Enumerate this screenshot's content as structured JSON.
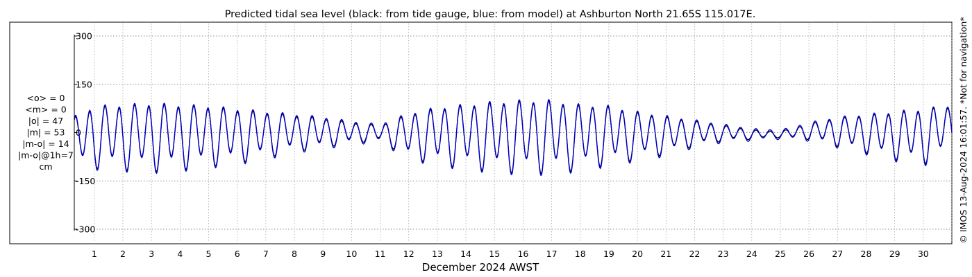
{
  "chart_data": {
    "type": "line",
    "title": "Predicted tidal sea level (black: from tide gauge, blue: from model) at Ashburton North 21.65S 115.017E.",
    "xlabel": "December 2024 AWST",
    "ylabel": "",
    "ylim": [
      -300,
      300
    ],
    "yticks": [
      300,
      150,
      0,
      -150,
      -300
    ],
    "yticks_labels": [
      "300",
      "150",
      "0",
      "-150",
      "-300"
    ],
    "xlim": [
      0.3,
      31.0
    ],
    "xticks": [
      1,
      2,
      3,
      4,
      5,
      6,
      7,
      8,
      9,
      10,
      11,
      12,
      13,
      14,
      15,
      16,
      17,
      18,
      19,
      20,
      21,
      22,
      23,
      24,
      25,
      26,
      27,
      28,
      29,
      30
    ],
    "xticks_labels": [
      "1",
      "2",
      "3",
      "4",
      "5",
      "6",
      "7",
      "8",
      "9",
      "10",
      "11",
      "12",
      "13",
      "14",
      "15",
      "16",
      "17",
      "18",
      "19",
      "20",
      "21",
      "22",
      "23",
      "24",
      "25",
      "26",
      "27",
      "28",
      "29",
      "30"
    ],
    "grid": true,
    "stats_lines": [
      "<o> = 0",
      "<m> = 0",
      "|o| = 47",
      "|m| = 53",
      "|m-o| = 14",
      "|m-o|@1h=7",
      "cm"
    ],
    "credit": "© IMOS 13-Aug-2024 16:01:57. *Not for navigation*",
    "series": [
      {
        "color": "#000000",
        "model": "semidiurnal tide reconstructed from peaks: daily [day, high, low]",
        "daily_extremes": [
          [
            0.3,
            55,
            -95
          ],
          [
            1,
            90,
            -105
          ],
          [
            2,
            95,
            -110
          ],
          [
            3,
            100,
            -115
          ],
          [
            4,
            95,
            -110
          ],
          [
            5,
            90,
            -100
          ],
          [
            6,
            80,
            -90
          ],
          [
            7,
            70,
            -75
          ],
          [
            8,
            60,
            -55
          ],
          [
            9,
            50,
            -45
          ],
          [
            10,
            35,
            -30
          ],
          [
            11,
            25,
            -25
          ],
          [
            12,
            65,
            -75
          ],
          [
            13,
            85,
            -95
          ],
          [
            14,
            95,
            -105
          ],
          [
            15,
            105,
            -115
          ],
          [
            16,
            110,
            -120
          ],
          [
            17,
            110,
            -120
          ],
          [
            18,
            95,
            -110
          ],
          [
            19,
            90,
            -95
          ],
          [
            20,
            70,
            -80
          ],
          [
            21,
            55,
            -65
          ],
          [
            22,
            40,
            -40
          ],
          [
            23,
            25,
            -25
          ],
          [
            24,
            10,
            -20
          ],
          [
            25,
            5,
            -15
          ],
          [
            26,
            30,
            -20
          ],
          [
            27,
            50,
            -40
          ],
          [
            28,
            60,
            -60
          ],
          [
            29,
            70,
            -80
          ],
          [
            30,
            80,
            -95
          ],
          [
            31,
            90,
            -50
          ]
        ]
      },
      {
        "color": "#0000cc",
        "model": "semidiurnal tide reconstructed from peaks: daily [day, high, low]",
        "daily_extremes": [
          [
            0.3,
            60,
            -100
          ],
          [
            1,
            95,
            -110
          ],
          [
            2,
            100,
            -115
          ],
          [
            3,
            105,
            -120
          ],
          [
            4,
            100,
            -115
          ],
          [
            5,
            95,
            -105
          ],
          [
            6,
            85,
            -95
          ],
          [
            7,
            75,
            -80
          ],
          [
            8,
            65,
            -60
          ],
          [
            9,
            55,
            -50
          ],
          [
            10,
            40,
            -35
          ],
          [
            11,
            30,
            -30
          ],
          [
            12,
            70,
            -80
          ],
          [
            13,
            90,
            -100
          ],
          [
            14,
            100,
            -110
          ],
          [
            15,
            110,
            -120
          ],
          [
            16,
            115,
            -125
          ],
          [
            17,
            115,
            -125
          ],
          [
            18,
            100,
            -115
          ],
          [
            19,
            95,
            -100
          ],
          [
            20,
            75,
            -85
          ],
          [
            21,
            60,
            -70
          ],
          [
            22,
            45,
            -45
          ],
          [
            23,
            30,
            -30
          ],
          [
            24,
            15,
            -25
          ],
          [
            25,
            10,
            -20
          ],
          [
            26,
            35,
            -25
          ],
          [
            27,
            55,
            -45
          ],
          [
            28,
            65,
            -65
          ],
          [
            29,
            75,
            -85
          ],
          [
            30,
            85,
            -100
          ],
          [
            31,
            95,
            -55
          ]
        ]
      }
    ]
  }
}
